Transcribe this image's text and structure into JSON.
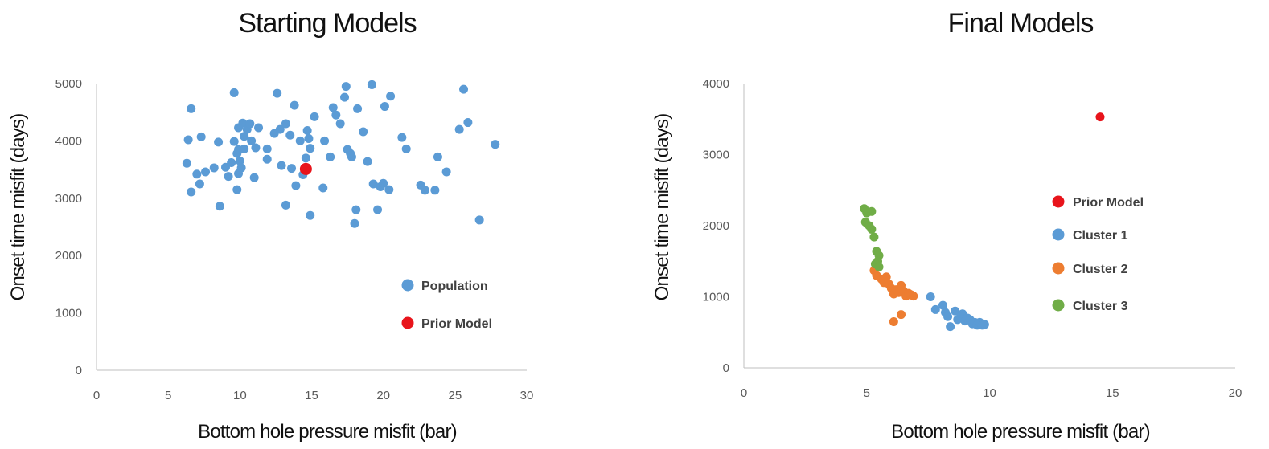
{
  "colors": {
    "population": "#5b9bd5",
    "prior": "#e8141b",
    "cluster1": "#5b9bd5",
    "cluster2": "#ed7d31",
    "cluster3": "#70ad47"
  },
  "chart_data": [
    {
      "type": "scatter",
      "title": "Starting Models",
      "xlabel": "Bottom hole pressure misfit (bar)",
      "ylabel": "Onset time misfit (days)",
      "xlim": [
        0,
        30
      ],
      "ylim": [
        0,
        5000
      ],
      "xticks": [
        "0",
        "5",
        "10",
        "15",
        "20",
        "25",
        "30"
      ],
      "yticks": [
        "0",
        "1000",
        "2000",
        "3000",
        "4000",
        "5000"
      ],
      "grid": false,
      "legend_position": "bottom-right",
      "series": [
        {
          "name": "Population",
          "color_key": "population",
          "marker_size": 5.5,
          "points": [
            [
              6.6,
              4560
            ],
            [
              6.4,
              4020
            ],
            [
              6.3,
              3610
            ],
            [
              6.6,
              3110
            ],
            [
              7.3,
              4070
            ],
            [
              7.0,
              3420
            ],
            [
              7.2,
              3250
            ],
            [
              7.6,
              3460
            ],
            [
              8.2,
              3530
            ],
            [
              8.5,
              3980
            ],
            [
              8.6,
              2860
            ],
            [
              9.0,
              3540
            ],
            [
              9.2,
              3380
            ],
            [
              9.4,
              3620
            ],
            [
              9.6,
              4840
            ],
            [
              9.6,
              3990
            ],
            [
              9.8,
              3780
            ],
            [
              9.9,
              4230
            ],
            [
              9.9,
              3850
            ],
            [
              9.8,
              3150
            ],
            [
              9.9,
              3430
            ],
            [
              10.0,
              3650
            ],
            [
              10.2,
              4310
            ],
            [
              10.3,
              4080
            ],
            [
              10.1,
              3530
            ],
            [
              10.3,
              3860
            ],
            [
              10.5,
              4200
            ],
            [
              10.7,
              4300
            ],
            [
              10.8,
              4000
            ],
            [
              11.0,
              3360
            ],
            [
              11.1,
              3880
            ],
            [
              11.3,
              4230
            ],
            [
              11.9,
              3860
            ],
            [
              11.9,
              3680
            ],
            [
              12.4,
              4130
            ],
            [
              12.6,
              4830
            ],
            [
              12.8,
              4200
            ],
            [
              12.9,
              3570
            ],
            [
              13.2,
              4300
            ],
            [
              13.2,
              2880
            ],
            [
              13.5,
              4100
            ],
            [
              13.6,
              3520
            ],
            [
              13.8,
              4620
            ],
            [
              13.9,
              3220
            ],
            [
              14.2,
              4000
            ],
            [
              14.4,
              3410
            ],
            [
              14.6,
              3700
            ],
            [
              14.7,
              4180
            ],
            [
              14.8,
              4040
            ],
            [
              14.9,
              3870
            ],
            [
              14.9,
              2700
            ],
            [
              15.2,
              4420
            ],
            [
              15.8,
              3180
            ],
            [
              15.9,
              4000
            ],
            [
              16.3,
              3720
            ],
            [
              16.5,
              4580
            ],
            [
              16.7,
              4450
            ],
            [
              17.0,
              4300
            ],
            [
              17.4,
              4950
            ],
            [
              17.3,
              4760
            ],
            [
              17.5,
              3850
            ],
            [
              17.7,
              3780
            ],
            [
              17.8,
              3720
            ],
            [
              18.1,
              2800
            ],
            [
              18.0,
              2560
            ],
            [
              18.2,
              4560
            ],
            [
              18.6,
              4160
            ],
            [
              18.9,
              3640
            ],
            [
              19.2,
              4980
            ],
            [
              19.3,
              3250
            ],
            [
              19.6,
              2800
            ],
            [
              19.8,
              3200
            ],
            [
              20.0,
              3260
            ],
            [
              20.1,
              4600
            ],
            [
              20.5,
              4780
            ],
            [
              20.4,
              3150
            ],
            [
              21.3,
              4060
            ],
            [
              21.6,
              3860
            ],
            [
              22.6,
              3230
            ],
            [
              22.9,
              3140
            ],
            [
              23.6,
              3140
            ],
            [
              23.8,
              3720
            ],
            [
              24.4,
              3460
            ],
            [
              25.3,
              4200
            ],
            [
              25.6,
              4900
            ],
            [
              25.9,
              4320
            ],
            [
              26.7,
              2620
            ],
            [
              27.8,
              3940
            ]
          ]
        },
        {
          "name": "Prior Model",
          "color_key": "prior",
          "marker_size": 7.5,
          "points": [
            [
              14.6,
              3510
            ]
          ]
        }
      ],
      "legend": [
        {
          "label": "Population",
          "color_key": "population"
        },
        {
          "label": "Prior Model",
          "color_key": "prior"
        }
      ]
    },
    {
      "type": "scatter",
      "title": "Final Models",
      "xlabel": "Bottom hole pressure misfit (bar)",
      "ylabel": "Onset time misfit (days)",
      "xlim": [
        0,
        20
      ],
      "ylim": [
        0,
        4000
      ],
      "xticks": [
        "0",
        "5",
        "10",
        "15",
        "20"
      ],
      "yticks": [
        "0",
        "1000",
        "2000",
        "3000",
        "4000"
      ],
      "grid": false,
      "legend_position": "center-right",
      "series": [
        {
          "name": "Prior Model",
          "color_key": "prior",
          "marker_size": 5.5,
          "points": [
            [
              14.5,
              3530
            ]
          ]
        },
        {
          "name": "Cluster 1",
          "color_key": "cluster1",
          "marker_size": 5.5,
          "points": [
            [
              7.6,
              1000
            ],
            [
              7.8,
              820
            ],
            [
              8.1,
              880
            ],
            [
              8.2,
              780
            ],
            [
              8.3,
              720
            ],
            [
              8.4,
              580
            ],
            [
              8.6,
              800
            ],
            [
              8.7,
              680
            ],
            [
              8.8,
              700
            ],
            [
              8.9,
              760
            ],
            [
              9.0,
              660
            ],
            [
              9.1,
              700
            ],
            [
              9.2,
              680
            ],
            [
              9.3,
              620
            ],
            [
              9.4,
              640
            ],
            [
              9.5,
              600
            ],
            [
              9.6,
              640
            ],
            [
              9.7,
              600
            ],
            [
              9.8,
              610
            ]
          ]
        },
        {
          "name": "Cluster 2",
          "color_key": "cluster2",
          "marker_size": 5.5,
          "points": [
            [
              5.3,
              1370
            ],
            [
              5.4,
              1300
            ],
            [
              5.6,
              1250
            ],
            [
              5.7,
              1200
            ],
            [
              5.8,
              1280
            ],
            [
              5.9,
              1180
            ],
            [
              6.0,
              1120
            ],
            [
              6.1,
              1040
            ],
            [
              6.2,
              1100
            ],
            [
              6.3,
              1060
            ],
            [
              6.4,
              1160
            ],
            [
              6.5,
              1080
            ],
            [
              6.6,
              1010
            ],
            [
              6.7,
              1050
            ],
            [
              6.8,
              1030
            ],
            [
              6.9,
              1010
            ],
            [
              6.1,
              650
            ],
            [
              6.4,
              750
            ]
          ]
        },
        {
          "name": "Cluster 3",
          "color_key": "cluster3",
          "marker_size": 5.5,
          "points": [
            [
              4.9,
              2240
            ],
            [
              5.0,
              2180
            ],
            [
              5.2,
              2200
            ],
            [
              4.95,
              2050
            ],
            [
              5.1,
              2000
            ],
            [
              5.2,
              1950
            ],
            [
              5.3,
              1840
            ],
            [
              5.4,
              1640
            ],
            [
              5.5,
              1580
            ],
            [
              5.45,
              1500
            ],
            [
              5.35,
              1460
            ],
            [
              5.5,
              1420
            ]
          ]
        }
      ],
      "legend": [
        {
          "label": "Prior Model",
          "color_key": "prior"
        },
        {
          "label": "Cluster 1",
          "color_key": "cluster1"
        },
        {
          "label": "Cluster 2",
          "color_key": "cluster2"
        },
        {
          "label": "Cluster 3",
          "color_key": "cluster3"
        }
      ]
    }
  ]
}
